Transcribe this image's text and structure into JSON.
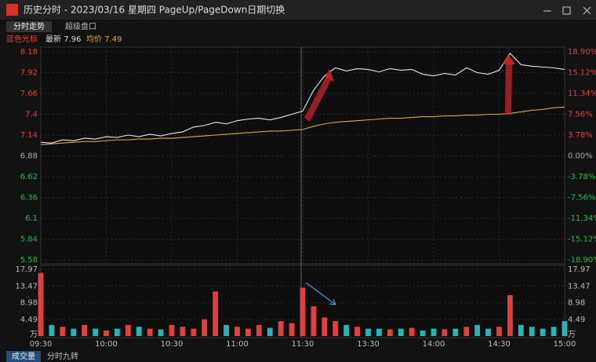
{
  "window": {
    "title": "历史分时 - 2023/03/16 星期四 PageUp/PageDown日期切换"
  },
  "tabs": [
    "分时走势",
    "超级盘口"
  ],
  "info": {
    "name": "蓝色光标",
    "latest_label": "最新",
    "latest": 7.96,
    "avg_label": "均价",
    "avg": 7.49
  },
  "bottom_tabs": [
    "成交量",
    "分时九转"
  ],
  "chart_data": [
    {
      "type": "line",
      "xlim": [
        0,
        240
      ],
      "xticks": [
        {
          "value": 0,
          "label": "09:30"
        },
        {
          "value": 30,
          "label": "10:00"
        },
        {
          "value": 60,
          "label": "10:30"
        },
        {
          "value": 90,
          "label": "11:00"
        },
        {
          "value": 120,
          "label": "11:30"
        },
        {
          "value": 150,
          "label": "13:30"
        },
        {
          "value": 180,
          "label": "14:00"
        },
        {
          "value": 210,
          "label": "14:30"
        },
        {
          "value": 240,
          "label": "15:00"
        }
      ],
      "ylim": [
        5.58,
        8.18
      ],
      "yticks": [
        8.18,
        7.92,
        7.66,
        7.4,
        7.14,
        6.88,
        6.62,
        6.36,
        6.1,
        5.84,
        5.58
      ],
      "y2lim": [
        -18.9,
        18.9
      ],
      "y2ticks": [
        {
          "value": 18.9,
          "label": "18.90%"
        },
        {
          "value": 15.12,
          "label": "15.12%"
        },
        {
          "value": 11.34,
          "label": "11.34%"
        },
        {
          "value": 7.56,
          "label": "7.56%"
        },
        {
          "value": 3.78,
          "label": "3.78%"
        },
        {
          "value": 0,
          "label": "0.00%"
        },
        {
          "value": -3.78,
          "label": "-3.78%"
        },
        {
          "value": -7.56,
          "label": "-7.56%"
        },
        {
          "value": -11.34,
          "label": "-11.34%"
        },
        {
          "value": -15.12,
          "label": "-15.12%"
        },
        {
          "value": -18.9,
          "label": "-18.90%"
        }
      ],
      "x": [
        0,
        5,
        10,
        15,
        20,
        25,
        30,
        35,
        40,
        45,
        50,
        55,
        60,
        65,
        70,
        75,
        80,
        85,
        90,
        95,
        100,
        105,
        110,
        115,
        120,
        125,
        130,
        135,
        140,
        145,
        150,
        155,
        160,
        165,
        170,
        175,
        180,
        185,
        190,
        195,
        200,
        205,
        210,
        215,
        220,
        225,
        230,
        235,
        240
      ],
      "series": [
        {
          "color": "#e8e8e8",
          "values": [
            7.05,
            7.04,
            7.08,
            7.07,
            7.1,
            7.09,
            7.12,
            7.11,
            7.14,
            7.12,
            7.15,
            7.13,
            7.16,
            7.18,
            7.24,
            7.26,
            7.3,
            7.28,
            7.32,
            7.34,
            7.35,
            7.33,
            7.36,
            7.4,
            7.44,
            7.7,
            7.88,
            7.98,
            7.94,
            7.97,
            7.96,
            7.93,
            7.97,
            7.95,
            7.96,
            7.9,
            7.88,
            7.91,
            7.89,
            7.98,
            7.92,
            7.9,
            7.95,
            8.16,
            8.02,
            8.0,
            7.99,
            7.98,
            7.96
          ]
        },
        {
          "color": "#d8a85a",
          "values": [
            7.02,
            7.03,
            7.04,
            7.05,
            7.06,
            7.06,
            7.07,
            7.08,
            7.08,
            7.09,
            7.09,
            7.1,
            7.1,
            7.11,
            7.12,
            7.13,
            7.14,
            7.15,
            7.16,
            7.17,
            7.18,
            7.19,
            7.19,
            7.2,
            7.21,
            7.25,
            7.28,
            7.3,
            7.31,
            7.32,
            7.33,
            7.34,
            7.35,
            7.35,
            7.36,
            7.37,
            7.37,
            7.38,
            7.38,
            7.39,
            7.39,
            7.4,
            7.4,
            7.41,
            7.43,
            7.45,
            7.46,
            7.48,
            7.49
          ]
        }
      ],
      "grid": true
    },
    {
      "type": "bar",
      "xlim": [
        0,
        240
      ],
      "ylim": [
        0,
        17.97
      ],
      "yticks": [
        17.97,
        13.47,
        8.98,
        4.49
      ],
      "unit": "万",
      "x": [
        0,
        5,
        10,
        15,
        20,
        25,
        30,
        35,
        40,
        45,
        50,
        55,
        60,
        65,
        70,
        75,
        80,
        85,
        90,
        95,
        100,
        105,
        110,
        115,
        120,
        125,
        130,
        135,
        140,
        145,
        150,
        155,
        160,
        165,
        170,
        175,
        180,
        185,
        190,
        195,
        200,
        205,
        210,
        215,
        220,
        225,
        230,
        235,
        240
      ],
      "values": [
        17,
        3,
        2.5,
        2,
        3,
        2,
        1.5,
        2,
        3,
        2.5,
        2,
        1.8,
        3,
        2.5,
        2,
        4.5,
        12,
        3,
        2.5,
        2,
        3,
        2.2,
        4,
        3.5,
        13,
        8,
        5,
        4,
        3,
        2.5,
        2,
        2,
        1.8,
        2,
        2.2,
        1.5,
        2,
        1.8,
        2,
        2.5,
        3,
        2,
        2.5,
        11,
        3,
        2.5,
        2,
        2.5,
        4
      ],
      "colors": [
        "#e0413f",
        "#2bb3b3",
        "#e0413f",
        "#2bb3b3",
        "#e0413f",
        "#2bb3b3",
        "#e0413f",
        "#2bb3b3",
        "#e0413f",
        "#2bb3b3",
        "#e0413f",
        "#2bb3b3",
        "#e0413f",
        "#e0413f",
        "#e0413f",
        "#e0413f",
        "#e0413f",
        "#2bb3b3",
        "#e0413f",
        "#e0413f",
        "#e0413f",
        "#2bb3b3",
        "#e0413f",
        "#e0413f",
        "#e0413f",
        "#e0413f",
        "#e0413f",
        "#e0413f",
        "#2bb3b3",
        "#e0413f",
        "#2bb3b3",
        "#2bb3b3",
        "#e0413f",
        "#2bb3b3",
        "#e0413f",
        "#2bb3b3",
        "#2bb3b3",
        "#e0413f",
        "#2bb3b3",
        "#e0413f",
        "#2bb3b3",
        "#2bb3b3",
        "#e0413f",
        "#e0413f",
        "#2bb3b3",
        "#2bb3b3",
        "#2bb3b3",
        "#2bb3b3",
        "#2bb3b3"
      ]
    }
  ]
}
